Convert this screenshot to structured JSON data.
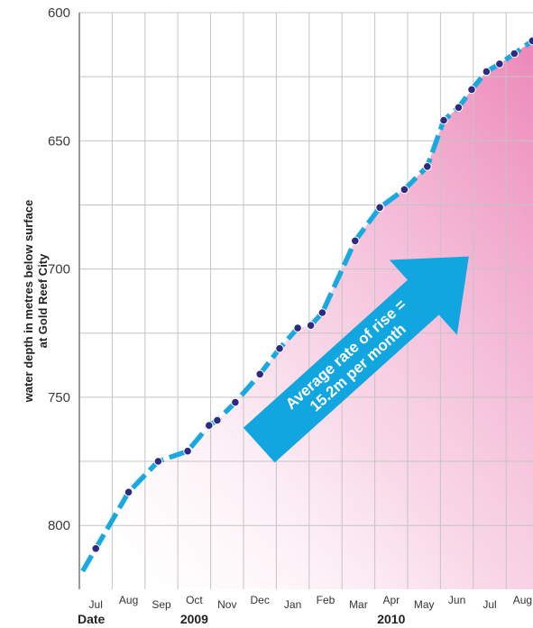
{
  "chart_data": {
    "type": "line",
    "ylabel_line1": "water depth in metres below surface",
    "ylabel_line2": "at Gold Reef City",
    "y_inverted": true,
    "ylim": [
      600,
      820
    ],
    "yticks": [
      600,
      650,
      700,
      750,
      800
    ],
    "grid": true,
    "x_months": [
      "Jul",
      "Aug",
      "Sep",
      "Oct",
      "Nov",
      "Dec",
      "Jan",
      "Feb",
      "Mar",
      "Apr",
      "May",
      "Jun",
      "Jul",
      "Aug"
    ],
    "x_start_label": "Date",
    "years": [
      {
        "label": "2009",
        "month_index": 3.5
      },
      {
        "label": "2010",
        "month_index": 9.5
      }
    ],
    "series": [
      {
        "values": [
          {
            "x": 0.5,
            "y": 809
          },
          {
            "x": 1.5,
            "y": 787
          },
          {
            "x": 2.4,
            "y": 775
          },
          {
            "x": 3.3,
            "y": 771
          },
          {
            "x": 3.95,
            "y": 761
          },
          {
            "x": 4.2,
            "y": 759
          },
          {
            "x": 4.75,
            "y": 752
          },
          {
            "x": 5.5,
            "y": 741
          },
          {
            "x": 6.1,
            "y": 731
          },
          {
            "x": 6.65,
            "y": 723
          },
          {
            "x": 7.05,
            "y": 722
          },
          {
            "x": 7.4,
            "y": 717
          },
          {
            "x": 8.4,
            "y": 689
          },
          {
            "x": 9.15,
            "y": 676
          },
          {
            "x": 9.9,
            "y": 669
          },
          {
            "x": 10.6,
            "y": 660
          },
          {
            "x": 11.1,
            "y": 642
          },
          {
            "x": 11.55,
            "y": 637
          },
          {
            "x": 11.95,
            "y": 630
          },
          {
            "x": 12.4,
            "y": 623
          },
          {
            "x": 12.8,
            "y": 620
          },
          {
            "x": 13.25,
            "y": 616
          },
          {
            "x": 13.8,
            "y": 611
          }
        ]
      }
    ],
    "annotation": {
      "line1": "Average rate of rise =",
      "line2": "15.2m per month"
    },
    "colors": {
      "line": "#19a9e1",
      "points": "#2e2a7f",
      "arrow": "#12a6e0",
      "fill": "#ee8fbf",
      "grid": "#c4c4c4"
    }
  }
}
